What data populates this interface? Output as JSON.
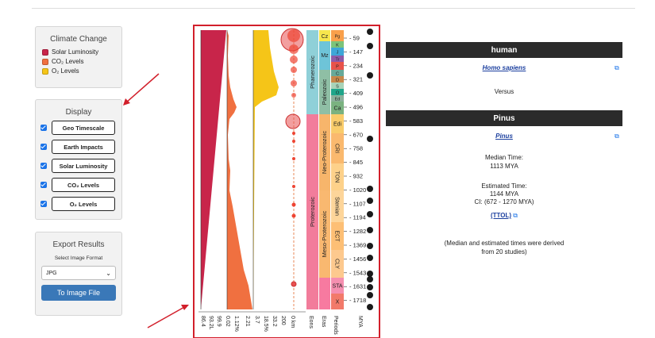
{
  "climate": {
    "title": "Climate Change",
    "items": [
      {
        "label": "Solar Luminosity",
        "color": "#c8254a"
      },
      {
        "label": "CO₂ Levels",
        "color": "#f07040"
      },
      {
        "label": "O₂ Levels",
        "color": "#f5c518"
      }
    ]
  },
  "display": {
    "title": "Display",
    "options": [
      {
        "label": "Geo Timescale",
        "checked": true
      },
      {
        "label": "Earth Impacts",
        "checked": true
      },
      {
        "label": "Solar Luminosity",
        "checked": true
      },
      {
        "label": "CO₂ Levels",
        "checked": true
      },
      {
        "label": "O₂ Levels",
        "checked": true
      }
    ]
  },
  "export": {
    "title": "Export Results",
    "format_label": "Select Image Format",
    "format_value": "JPG",
    "button": "To Image File"
  },
  "timeline": {
    "eons": [
      "Phanerozoic",
      "Proterozoic"
    ],
    "eras": [
      "Cz",
      "Mz",
      "Paleozoic",
      "Neo-Proterozoic",
      "Meso-Proterozoic"
    ],
    "periods": [
      "Pg",
      "K",
      "J",
      "Tr",
      "P",
      "C",
      "D",
      "S",
      "O",
      "Ed",
      "Ca",
      "Edi",
      "CRI",
      "TON",
      "Stenian",
      "ECT",
      "CLY",
      "STA",
      "X"
    ],
    "mya_ticks": [
      "59",
      "147",
      "234",
      "321",
      "409",
      "496",
      "583",
      "670",
      "758",
      "845",
      "932",
      "1020",
      "1107",
      "1194",
      "1282",
      "1369",
      "1456",
      "1543",
      "1631",
      "1718"
    ],
    "axis_labels": {
      "solar": [
        "86.4",
        "93.2L",
        "99.9"
      ],
      "co2": [
        "0.02",
        "1.12%"
      ],
      "o2": [
        "2.21",
        "3.7",
        "18.5%"
      ],
      "impacts": [
        "33.2",
        "200",
        "0 km"
      ],
      "eons": "Eons",
      "eras": "Eras",
      "periods": "Periods",
      "mya": "MYA"
    }
  },
  "result": {
    "taxon1": "human",
    "taxon1_link": "Homo sapiens",
    "versus": "Versus",
    "taxon2": "Pinus",
    "taxon2_link": "Pinus",
    "median_label": "Median Time:",
    "median_value": "1113 MYA",
    "estimated_label": "Estimated Time:",
    "estimated_value": "1144 MYA",
    "ci": "CI: (672 - 1270 MYA)",
    "ttol": "(TTOL)",
    "note1": "(Median and estimated times were derived",
    "note2": "from 20 studies)"
  }
}
